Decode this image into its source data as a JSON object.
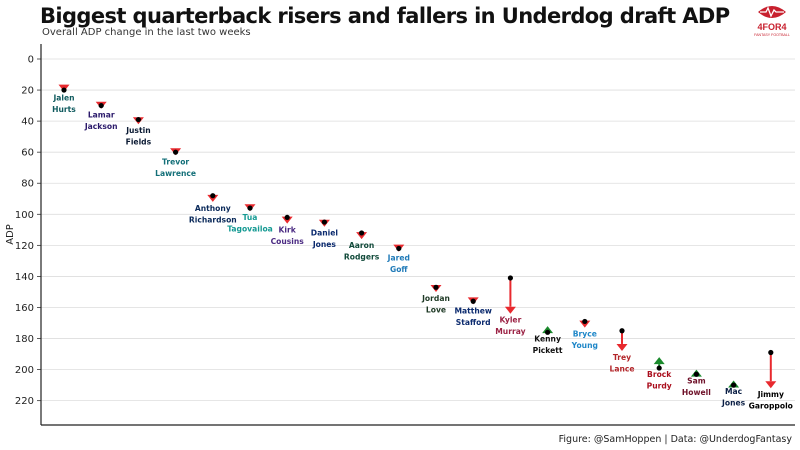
{
  "header": {
    "title": "Biggest quarterback risers and fallers in Underdog draft ADP",
    "subtitle": "Overall ADP change in the last two weeks",
    "caption": "Figure: @SamHoppen | Data: @UnderdogFantasy"
  },
  "logo": {
    "text": "4FOR4",
    "tagline": "FANTASY FOOTBALL",
    "color": "#c8202e"
  },
  "colors": {
    "faller_arrow": "#e8292e",
    "riser_arrow": "#1a8a2c",
    "point": "#000000",
    "grid": "#dddddd"
  },
  "chart_data": {
    "type": "scatter",
    "subtype": "arrow",
    "title": "Biggest quarterback risers and fallers in Underdog draft ADP",
    "subtitle": "Overall ADP change in the last two weeks",
    "xlabel": "",
    "ylabel": "ADP",
    "y_reversed": true,
    "ylim": [
      0,
      235
    ],
    "yticks": [
      0,
      20,
      40,
      60,
      80,
      100,
      120,
      140,
      160,
      180,
      200,
      220
    ],
    "grid": true,
    "players": [
      {
        "name": "Jalen Hurts",
        "lines": [
          "Jalen",
          "Hurts"
        ],
        "from": 20,
        "to": 21,
        "color": "#0f5a5e"
      },
      {
        "name": "Lamar Jackson",
        "lines": [
          "Lamar",
          "Jackson"
        ],
        "from": 30,
        "to": 32,
        "color": "#2b1a6b"
      },
      {
        "name": "Justin Fields",
        "lines": [
          "Justin",
          "Fields"
        ],
        "from": 39,
        "to": 42,
        "color": "#0b1a33"
      },
      {
        "name": "Trevor Lawrence",
        "lines": [
          "Trevor",
          "Lawrence"
        ],
        "from": 60,
        "to": 62,
        "color": "#136f78"
      },
      {
        "name": "Anthony Richardson",
        "lines": [
          "Anthony",
          "Richardson"
        ],
        "from": 88,
        "to": 92,
        "color": "#0b2a5a"
      },
      {
        "name": "Tua Tagovailoa",
        "lines": [
          "Tua",
          "Tagovailoa"
        ],
        "from": 96,
        "to": 98,
        "color": "#159a93"
      },
      {
        "name": "Kirk Cousins",
        "lines": [
          "Kirk",
          "Cousins"
        ],
        "from": 102,
        "to": 106,
        "color": "#4a2a82"
      },
      {
        "name": "Daniel Jones",
        "lines": [
          "Daniel",
          "Jones"
        ],
        "from": 105,
        "to": 108,
        "color": "#0b2a6e"
      },
      {
        "name": "Aaron Rodgers",
        "lines": [
          "Aaron",
          "Rodgers"
        ],
        "from": 112,
        "to": 116,
        "color": "#114a3a"
      },
      {
        "name": "Jared Goff",
        "lines": [
          "Jared",
          "Goff"
        ],
        "from": 122,
        "to": 124,
        "color": "#1f7ab8"
      },
      {
        "name": "Jordan Love",
        "lines": [
          "Jordan",
          "Love"
        ],
        "from": 147,
        "to": 150,
        "color": "#1f3a26"
      },
      {
        "name": "Matthew Stafford",
        "lines": [
          "Matthew",
          "Stafford"
        ],
        "from": 156,
        "to": 158,
        "color": "#0b2a6e"
      },
      {
        "name": "Kyler Murray",
        "lines": [
          "Kyler",
          "Murray"
        ],
        "from": 141,
        "to": 164,
        "color": "#9b2244"
      },
      {
        "name": "Kenny Pickett",
        "lines": [
          "Kenny",
          "Pickett"
        ],
        "from": 176,
        "to": 172,
        "color": "#111111"
      },
      {
        "name": "Bryce Young",
        "lines": [
          "Bryce",
          "Young"
        ],
        "from": 169,
        "to": 173,
        "color": "#1f87c8"
      },
      {
        "name": "Trey Lance",
        "lines": [
          "Trey",
          "Lance"
        ],
        "from": 175,
        "to": 188,
        "color": "#b3262a"
      },
      {
        "name": "Brock Purdy",
        "lines": [
          "Brock",
          "Purdy"
        ],
        "from": 199,
        "to": 192,
        "color": "#aa0e1d"
      },
      {
        "name": "Sam Howell",
        "lines": [
          "Sam",
          "Howell"
        ],
        "from": 203,
        "to": 200,
        "color": "#6e1028"
      },
      {
        "name": "Mac Jones",
        "lines": [
          "Mac",
          "Jones"
        ],
        "from": 210,
        "to": 207,
        "color": "#0b1f45"
      },
      {
        "name": "Jimmy Garoppolo",
        "lines": [
          "Jimmy",
          "Garoppolo"
        ],
        "from": 189,
        "to": 212,
        "color": "#000000"
      }
    ]
  }
}
